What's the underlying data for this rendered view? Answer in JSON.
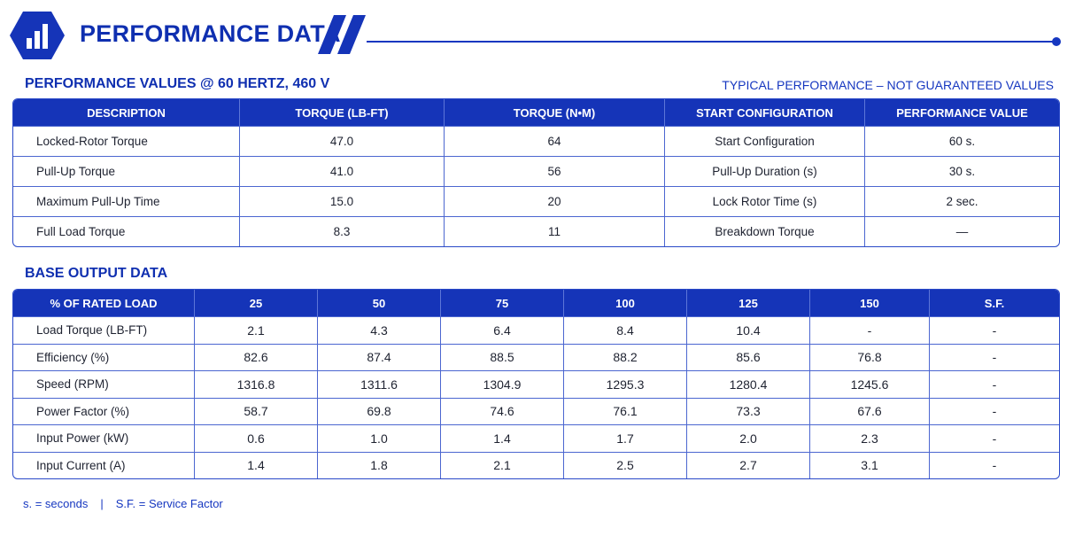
{
  "header": {
    "title": "PERFORMANCE DATA"
  },
  "section1": {
    "title": "PERFORMANCE VALUES @ 60 HERTZ, 460 V",
    "note": "TYPICAL PERFORMANCE – NOT GUARANTEED VALUES",
    "columns": [
      "DESCRIPTION",
      "TORQUE (LB-FT)",
      "TORQUE (N•M)",
      "START CONFIGURATION",
      "PERFORMANCE VALUE"
    ],
    "rows": [
      [
        "Locked-Rotor Torque",
        "47.0",
        "64",
        "Start Configuration",
        "60 s."
      ],
      [
        "Pull-Up Torque",
        "41.0",
        "56",
        "Pull-Up Duration (s)",
        "30 s."
      ],
      [
        "Maximum Pull-Up Time",
        "15.0",
        "20",
        "Lock Rotor Time (s)",
        "2 sec."
      ],
      [
        "Full Load Torque",
        "8.3",
        "11",
        "Breakdown Torque",
        "—"
      ]
    ]
  },
  "section2": {
    "title": "BASE OUTPUT DATA",
    "columns": [
      "% OF RATED LOAD",
      "25",
      "50",
      "75",
      "100",
      "125",
      "150",
      "S.F."
    ],
    "rows": [
      [
        "Load Torque (LB-FT)",
        "2.1",
        "4.3",
        "6.4",
        "8.4",
        "10.4",
        "-",
        "-"
      ],
      [
        "Efficiency (%)",
        "82.6",
        "87.4",
        "88.5",
        "88.2",
        "85.6",
        "76.8",
        "-"
      ],
      [
        "Speed (RPM)",
        "1316.8",
        "1311.6",
        "1304.9",
        "1295.3",
        "1280.4",
        "1245.6",
        "-"
      ],
      [
        "Power Factor (%)",
        "58.7",
        "69.8",
        "74.6",
        "76.1",
        "73.3",
        "67.6",
        "-"
      ],
      [
        "Input Power (kW)",
        "0.6",
        "1.0",
        "1.4",
        "1.7",
        "2.0",
        "2.3",
        "-"
      ],
      [
        "Input Current (A)",
        "1.4",
        "1.8",
        "2.1",
        "2.5",
        "2.7",
        "3.1",
        "-"
      ]
    ]
  },
  "footer": {
    "note1": "s. = seconds",
    "separator": "|",
    "note2": "S.F. = Service Factor"
  },
  "colors": {
    "primary": "#1534b8",
    "heading": "#0f2fb0",
    "border": "#4b66d0"
  },
  "icons": {
    "logo": "bar-chart-hexagon-icon",
    "decor": "double-slash-icon"
  }
}
